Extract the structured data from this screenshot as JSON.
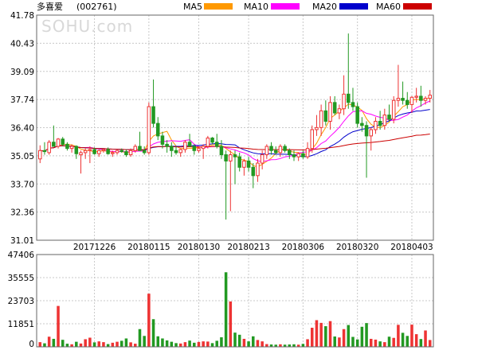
{
  "stock": {
    "name": "多喜爱",
    "code": "(002761)"
  },
  "watermark": "SOHU.com",
  "legend": [
    {
      "label": "MA5",
      "color": "#ff9900"
    },
    {
      "label": "MA10",
      "color": "#ff00ff"
    },
    {
      "label": "MA20",
      "color": "#0000cc"
    },
    {
      "label": "MA60",
      "color": "#cc0000"
    }
  ],
  "colors": {
    "up": "#ee3333",
    "down": "#229922",
    "grid": "#c8c8c8",
    "frame": "#666666"
  },
  "chart_data": [
    {
      "type": "candlestick",
      "title": "多喜爱 (002761)",
      "y_ticks": [
        "41.78",
        "40.43",
        "39.09",
        "37.74",
        "36.40",
        "35.05",
        "33.70",
        "32.36",
        "31.01"
      ],
      "ylim": [
        31.01,
        41.78
      ],
      "x_tick_labels": [
        "20171226",
        "20180115",
        "20180130",
        "20180213",
        "20180306",
        "20180320",
        "20180403"
      ],
      "x_tick_index": [
        12,
        24,
        35,
        46,
        58,
        70,
        82
      ],
      "candles": [
        [
          34.9,
          35.55,
          34.7,
          35.3
        ],
        [
          35.3,
          35.7,
          35.1,
          35.25
        ],
        [
          35.2,
          35.8,
          35.1,
          35.7
        ],
        [
          35.7,
          36.5,
          35.5,
          35.5
        ],
        [
          35.5,
          35.9,
          35.4,
          35.85
        ],
        [
          35.85,
          35.95,
          35.5,
          35.6
        ],
        [
          35.6,
          35.7,
          35.3,
          35.4
        ],
        [
          35.4,
          35.6,
          35.2,
          35.5
        ],
        [
          35.5,
          35.55,
          34.9,
          35.15
        ],
        [
          35.1,
          35.3,
          34.2,
          35.2
        ],
        [
          35.2,
          35.4,
          34.9,
          35.3
        ],
        [
          35.3,
          35.5,
          34.7,
          35.35
        ],
        [
          35.35,
          35.45,
          35.1,
          35.15
        ],
        [
          35.15,
          35.35,
          35.0,
          35.3
        ],
        [
          35.3,
          35.4,
          35.2,
          35.35
        ],
        [
          35.35,
          35.45,
          35.1,
          35.15
        ],
        [
          35.15,
          35.3,
          35.0,
          35.2
        ],
        [
          35.2,
          35.35,
          35.1,
          35.3
        ],
        [
          35.3,
          35.4,
          35.2,
          35.25
        ],
        [
          35.25,
          35.35,
          35.0,
          35.1
        ],
        [
          35.1,
          35.4,
          35.0,
          35.3
        ],
        [
          35.3,
          35.6,
          35.2,
          35.5
        ],
        [
          35.5,
          36.2,
          35.4,
          35.3
        ],
        [
          35.3,
          35.5,
          35.1,
          35.2
        ],
        [
          35.2,
          37.6,
          35.1,
          37.4
        ],
        [
          37.4,
          38.7,
          36.4,
          36.6
        ],
        [
          36.6,
          36.9,
          35.8,
          36.0
        ],
        [
          36.0,
          36.2,
          35.4,
          35.6
        ],
        [
          35.6,
          35.8,
          35.2,
          35.5
        ],
        [
          35.5,
          35.7,
          35.0,
          35.3
        ],
        [
          35.3,
          35.5,
          35.1,
          35.2
        ],
        [
          35.2,
          35.4,
          35.0,
          35.35
        ],
        [
          35.35,
          35.8,
          35.2,
          35.7
        ],
        [
          35.7,
          36.1,
          35.5,
          35.5
        ],
        [
          35.5,
          35.6,
          35.1,
          35.3
        ],
        [
          35.3,
          35.5,
          35.2,
          35.4
        ],
        [
          35.4,
          35.6,
          34.9,
          35.5
        ],
        [
          35.5,
          36.0,
          35.4,
          35.9
        ],
        [
          35.9,
          35.95,
          35.6,
          35.7
        ],
        [
          35.7,
          36.1,
          35.4,
          35.5
        ],
        [
          35.5,
          35.8,
          34.9,
          35.1
        ],
        [
          35.1,
          35.3,
          32.0,
          34.8
        ],
        [
          34.8,
          35.3,
          32.4,
          35.1
        ],
        [
          35.1,
          35.3,
          33.7,
          35.0
        ],
        [
          35.0,
          35.2,
          34.3,
          34.5
        ],
        [
          34.5,
          34.9,
          34.1,
          34.8
        ],
        [
          34.8,
          35.0,
          34.3,
          34.5
        ],
        [
          34.5,
          34.7,
          33.5,
          34.1
        ],
        [
          34.1,
          34.9,
          33.8,
          34.7
        ],
        [
          34.7,
          35.3,
          34.4,
          35.1
        ],
        [
          35.1,
          35.6,
          34.9,
          35.5
        ],
        [
          35.5,
          35.7,
          35.1,
          35.3
        ],
        [
          35.3,
          35.5,
          35.1,
          35.2
        ],
        [
          35.2,
          35.6,
          35.0,
          35.5
        ],
        [
          35.5,
          35.6,
          35.2,
          35.3
        ],
        [
          35.3,
          35.4,
          34.9,
          35.1
        ],
        [
          35.1,
          35.3,
          34.8,
          35.0
        ],
        [
          35.0,
          35.2,
          34.8,
          35.15
        ],
        [
          35.15,
          35.3,
          34.9,
          35.0
        ],
        [
          35.0,
          35.7,
          34.9,
          35.4
        ],
        [
          35.4,
          36.5,
          35.2,
          36.3
        ],
        [
          36.3,
          37.0,
          36.0,
          36.4
        ],
        [
          36.4,
          37.5,
          36.0,
          37.2
        ],
        [
          37.2,
          37.7,
          36.5,
          36.7
        ],
        [
          36.7,
          37.9,
          36.3,
          37.6
        ],
        [
          37.6,
          37.9,
          37.0,
          37.1
        ],
        [
          37.1,
          37.5,
          36.8,
          37.3
        ],
        [
          37.3,
          38.9,
          37.0,
          38.0
        ],
        [
          38.0,
          40.9,
          37.3,
          37.6
        ],
        [
          37.6,
          38.3,
          37.2,
          37.4
        ],
        [
          37.4,
          37.6,
          36.4,
          36.6
        ],
        [
          36.6,
          36.9,
          36.2,
          36.5
        ],
        [
          36.5,
          36.7,
          34.0,
          36.0
        ],
        [
          36.0,
          36.4,
          35.3,
          36.3
        ],
        [
          36.3,
          36.9,
          36.1,
          36.7
        ],
        [
          36.7,
          37.2,
          36.3,
          36.5
        ],
        [
          36.5,
          37.3,
          36.3,
          37.0
        ],
        [
          37.0,
          37.5,
          36.7,
          36.8
        ],
        [
          36.8,
          37.9,
          36.6,
          37.7
        ],
        [
          37.7,
          39.4,
          37.4,
          37.8
        ],
        [
          37.8,
          38.6,
          37.5,
          37.7
        ],
        [
          37.7,
          38.1,
          37.3,
          37.5
        ],
        [
          37.5,
          37.9,
          37.1,
          37.85
        ],
        [
          37.85,
          38.3,
          37.6,
          37.9
        ],
        [
          37.9,
          38.4,
          37.4,
          37.7
        ],
        [
          37.7,
          37.9,
          37.5,
          37.8
        ],
        [
          37.8,
          38.2,
          37.6,
          37.95
        ]
      ],
      "volume": {
        "y_ticks": [
          "47406",
          "35555",
          "23703",
          "11851",
          "0"
        ],
        "ylim": [
          0,
          47406
        ],
        "values": [
          2400,
          1800,
          5200,
          4100,
          21000,
          3600,
          1600,
          1300,
          2600,
          1700,
          3900,
          4700,
          2300,
          2800,
          2400,
          1400,
          2100,
          2600,
          3100,
          4300,
          2300,
          1600,
          9100,
          5600,
          27300,
          14200,
          5400,
          4300,
          3300,
          2600,
          1900,
          1700,
          2400,
          3200,
          2100,
          2500,
          2800,
          2700,
          1900,
          3100,
          4900,
          38300,
          23300,
          7300,
          6200,
          4100,
          2800,
          5400,
          3500,
          2800,
          1400,
          1200,
          1100,
          1300,
          1100,
          1200,
          1300,
          1100,
          1500,
          3900,
          9800,
          13700,
          12300,
          10600,
          13200,
          5300,
          4800,
          9100,
          11200,
          5100,
          3800,
          10300,
          12200,
          4100,
          3700,
          2800,
          2400,
          5200,
          4600,
          11300,
          7200,
          5600,
          11400,
          6500,
          4000,
          8400,
          3500
        ]
      }
    }
  ]
}
